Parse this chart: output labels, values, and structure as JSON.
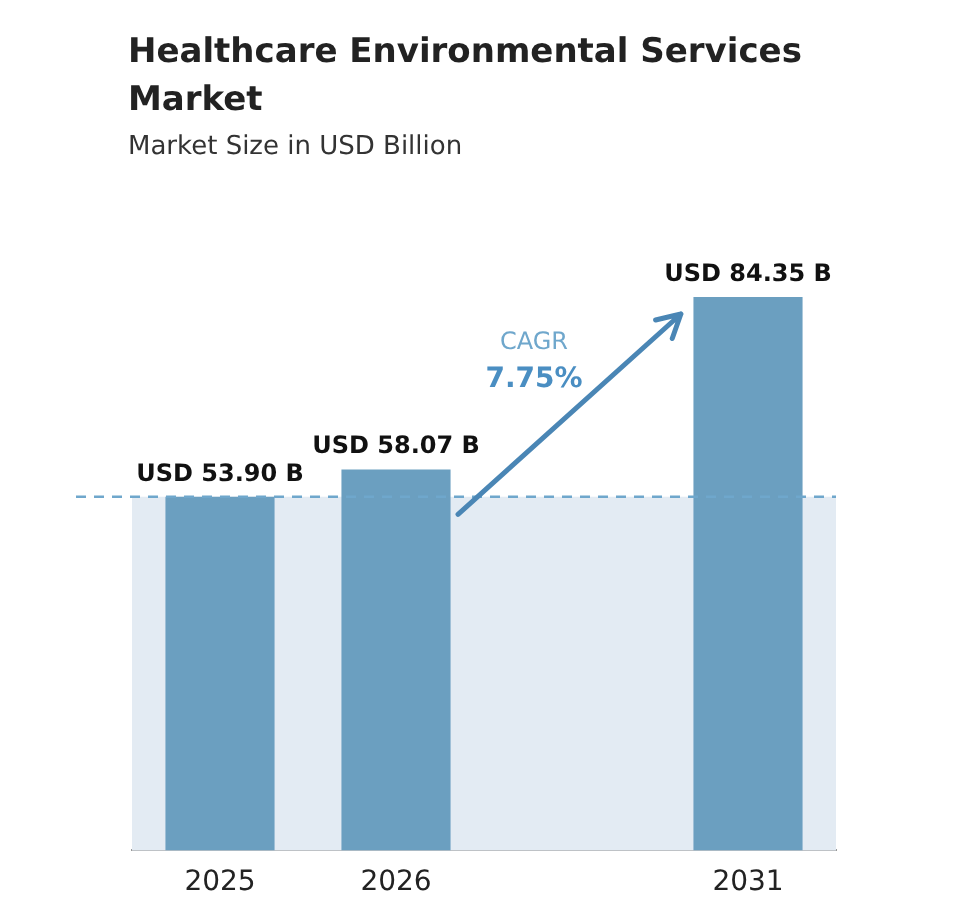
{
  "chart_data": {
    "type": "bar",
    "title": "Healthcare Environmental Services Market",
    "subtitle": "Market Size in USD Billion",
    "categories": [
      "2025",
      "2026",
      null,
      "2031"
    ],
    "values": [
      53.9,
      58.07,
      null,
      84.35
    ],
    "value_labels": [
      "USD 53.90 B",
      "USD 58.07 B",
      null,
      "USD 84.35 B"
    ],
    "color": "#6b9fc0",
    "annotations": [
      "CAGR",
      "7.75%"
    ],
    "ref_lines": [
      {
        "axis": "y",
        "value": 53.9,
        "color": "#6fa7cc",
        "line_style": "dashed"
      }
    ],
    "bands": [
      {
        "axis": "y",
        "from": 0,
        "to": 53.9,
        "color": "#e3ebf3"
      }
    ],
    "grid": false,
    "legend": false
  }
}
